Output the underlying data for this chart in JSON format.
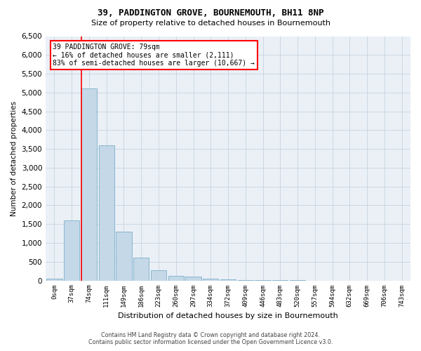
{
  "title1": "39, PADDINGTON GROVE, BOURNEMOUTH, BH11 8NP",
  "title2": "Size of property relative to detached houses in Bournemouth",
  "xlabel": "Distribution of detached houses by size in Bournemouth",
  "ylabel": "Number of detached properties",
  "bar_labels": [
    "0sqm",
    "37sqm",
    "74sqm",
    "111sqm",
    "149sqm",
    "186sqm",
    "223sqm",
    "260sqm",
    "297sqm",
    "334sqm",
    "372sqm",
    "409sqm",
    "446sqm",
    "483sqm",
    "520sqm",
    "557sqm",
    "594sqm",
    "632sqm",
    "669sqm",
    "706sqm",
    "743sqm"
  ],
  "bar_values": [
    50,
    1600,
    5100,
    3600,
    1300,
    600,
    280,
    130,
    100,
    50,
    30,
    15,
    5,
    3,
    2,
    1,
    1,
    0,
    0,
    0,
    0
  ],
  "bar_color": "#c5d8e8",
  "bar_edge_color": "#7aafc8",
  "annotation_text": "39 PADDINGTON GROVE: 79sqm\n← 16% of detached houses are smaller (2,111)\n83% of semi-detached houses are larger (10,667) →",
  "annotation_box_color": "white",
  "annotation_box_edge_color": "red",
  "vline_color": "red",
  "vline_bar_index": 2,
  "ylim": [
    0,
    6500
  ],
  "yticks": [
    0,
    500,
    1000,
    1500,
    2000,
    2500,
    3000,
    3500,
    4000,
    4500,
    5000,
    5500,
    6000,
    6500
  ],
  "grid_color": "#c8d4e0",
  "bg_color": "#eaf0f6",
  "footer1": "Contains HM Land Registry data © Crown copyright and database right 2024.",
  "footer2": "Contains public sector information licensed under the Open Government Licence v3.0."
}
